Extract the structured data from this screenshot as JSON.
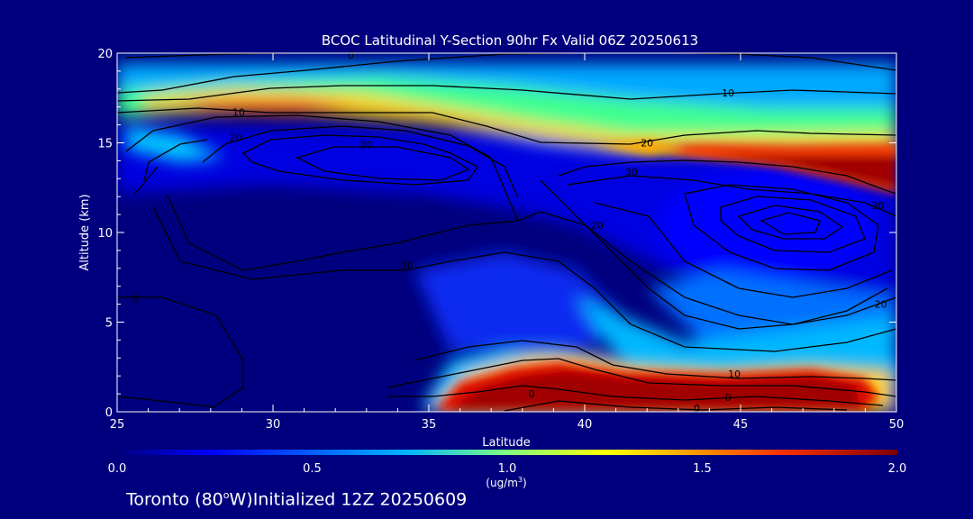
{
  "chart_data": {
    "type": "heatmap",
    "title": "BCOC Latitudinal Y-Section 90hr  Fx Valid 06Z 20250613",
    "xlabel": "Latitude",
    "ylabel": "Altitude (km)",
    "xlim": [
      25,
      50
    ],
    "ylim": [
      0,
      20
    ],
    "x_ticks": [
      25,
      30,
      35,
      40,
      45,
      50
    ],
    "y_ticks": [
      0,
      5,
      10,
      15,
      20
    ],
    "colorbar": {
      "ticks": [
        0.0,
        0.5,
        1.0,
        1.5,
        2.0
      ],
      "tick_labels": [
        "0.0",
        "0.5",
        "1.0",
        "1.5",
        "2.0"
      ],
      "unit_label": "(ug/m",
      "unit_sup": "3",
      "unit_close": ")",
      "range": [
        0,
        2
      ]
    },
    "field_features": [
      {
        "feature": "upper layer band",
        "lat": [
          25,
          50
        ],
        "alt_km": [
          14.5,
          19
        ],
        "value": 0.9
      },
      {
        "feature": "upper max",
        "lat": [
          46,
          50
        ],
        "alt_km": [
          13.3,
          15.2
        ],
        "value": 2.0
      },
      {
        "feature": "surface max",
        "lat": [
          35.5,
          49
        ],
        "alt_km": [
          0.3,
          2.6
        ],
        "value": 2.0
      }
    ],
    "contour_labels": [
      {
        "text": "0",
        "lat": 32.5,
        "alt_km": 19.9
      },
      {
        "text": "10",
        "lat": 44.6,
        "alt_km": 17.8
      },
      {
        "text": "10",
        "lat": 28.9,
        "alt_km": 16.7
      },
      {
        "text": "20",
        "lat": 28.8,
        "alt_km": 15.3
      },
      {
        "text": "30",
        "lat": 33.0,
        "alt_km": 14.9
      },
      {
        "text": "20",
        "lat": 42.0,
        "alt_km": 15.0
      },
      {
        "text": "30",
        "lat": 41.5,
        "alt_km": 13.4
      },
      {
        "text": "30",
        "lat": 49.4,
        "alt_km": 11.5
      },
      {
        "text": "20",
        "lat": 40.4,
        "alt_km": 10.4
      },
      {
        "text": "10",
        "lat": 34.3,
        "alt_km": 8.2
      },
      {
        "text": "20",
        "lat": 49.5,
        "alt_km": 6.0
      },
      {
        "text": "0",
        "lat": 25.6,
        "alt_km": 6.3
      },
      {
        "text": "10",
        "lat": 44.8,
        "alt_km": 2.1
      },
      {
        "text": "0",
        "lat": 44.6,
        "alt_km": 0.8
      },
      {
        "text": "0",
        "lat": 38.3,
        "alt_km": 1.0
      },
      {
        "text": "0",
        "lat": 43.6,
        "alt_km": 0.2
      }
    ]
  },
  "footer": {
    "location": "Toronto (80",
    "degree": "o",
    "suffix": "W)Initialized 12Z 20250609"
  },
  "colors": {
    "background": "#00007e",
    "contour": "#000000",
    "text": "#ffffff"
  }
}
